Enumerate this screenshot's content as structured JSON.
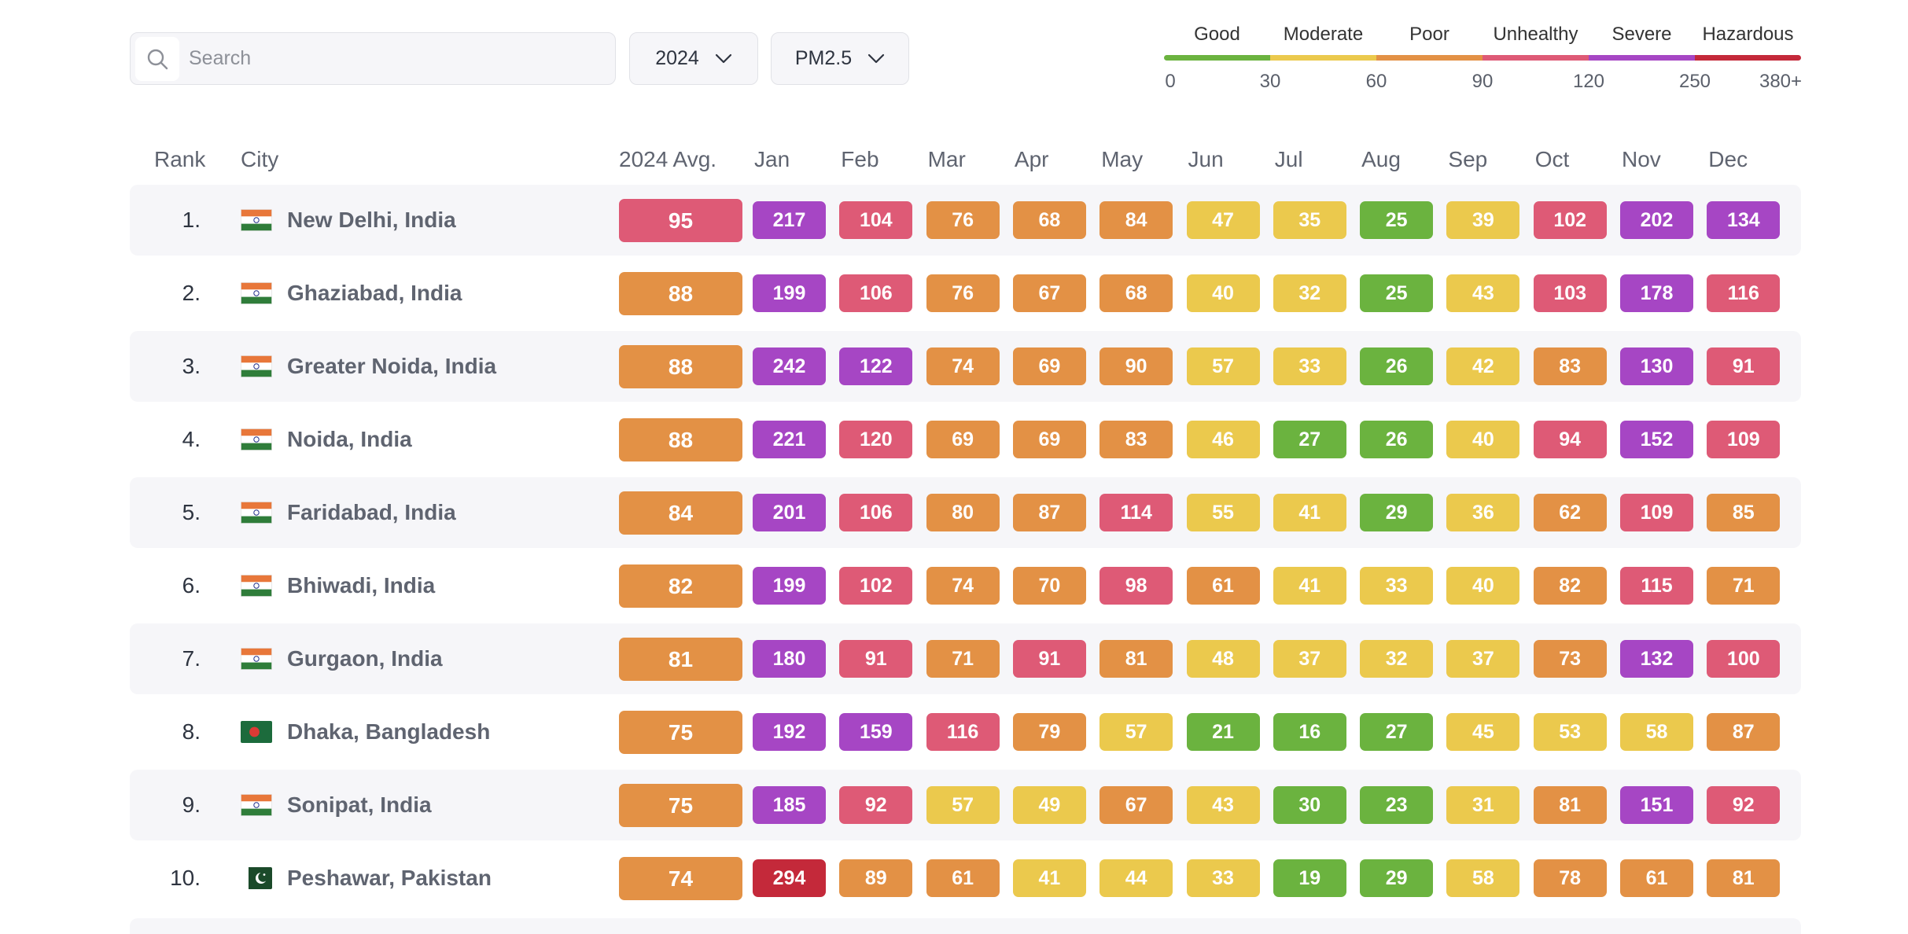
{
  "search": {
    "placeholder": "Search",
    "value": ""
  },
  "filters": {
    "year": "2024",
    "pollutant": "PM2.5"
  },
  "legend": {
    "categories": [
      {
        "label": "Good",
        "color": "#6bb33f"
      },
      {
        "label": "Moderate",
        "color": "#ebc94d"
      },
      {
        "label": "Poor",
        "color": "#e39145"
      },
      {
        "label": "Unhealthy",
        "color": "#de5a76"
      },
      {
        "label": "Severe",
        "color": "#a646c4"
      },
      {
        "label": "Hazardous",
        "color": "#c4293a"
      }
    ],
    "ticks": [
      "0",
      "30",
      "60",
      "90",
      "120",
      "250",
      "380+"
    ]
  },
  "table": {
    "headers": {
      "rank": "Rank",
      "city": "City",
      "avg": "2024 Avg.",
      "months": [
        "Jan",
        "Feb",
        "Mar",
        "Apr",
        "May",
        "Jun",
        "Jul",
        "Aug",
        "Sep",
        "Oct",
        "Nov",
        "Dec"
      ]
    },
    "rows": [
      {
        "rank": "1.",
        "city": "New Delhi, India",
        "flag": "india-flag-icon",
        "avg": "95",
        "months": [
          "217",
          "104",
          "76",
          "68",
          "84",
          "47",
          "35",
          "25",
          "39",
          "102",
          "202",
          "134"
        ]
      },
      {
        "rank": "2.",
        "city": "Ghaziabad, India",
        "flag": "india-flag-icon",
        "avg": "88",
        "months": [
          "199",
          "106",
          "76",
          "67",
          "68",
          "40",
          "32",
          "25",
          "43",
          "103",
          "178",
          "116"
        ]
      },
      {
        "rank": "3.",
        "city": "Greater Noida, India",
        "flag": "india-flag-icon",
        "avg": "88",
        "months": [
          "242",
          "122",
          "74",
          "69",
          "90",
          "57",
          "33",
          "26",
          "42",
          "83",
          "130",
          "91"
        ]
      },
      {
        "rank": "4.",
        "city": "Noida, India",
        "flag": "india-flag-icon",
        "avg": "88",
        "months": [
          "221",
          "120",
          "69",
          "69",
          "83",
          "46",
          "27",
          "26",
          "40",
          "94",
          "152",
          "109"
        ]
      },
      {
        "rank": "5.",
        "city": "Faridabad, India",
        "flag": "india-flag-icon",
        "avg": "84",
        "months": [
          "201",
          "106",
          "80",
          "87",
          "114",
          "55",
          "41",
          "29",
          "36",
          "62",
          "109",
          "85"
        ]
      },
      {
        "rank": "6.",
        "city": "Bhiwadi, India",
        "flag": "india-flag-icon",
        "avg": "82",
        "months": [
          "199",
          "102",
          "74",
          "70",
          "98",
          "61",
          "41",
          "33",
          "40",
          "82",
          "115",
          "71"
        ]
      },
      {
        "rank": "7.",
        "city": "Gurgaon, India",
        "flag": "india-flag-icon",
        "avg": "81",
        "months": [
          "180",
          "91",
          "71",
          "91",
          "81",
          "48",
          "37",
          "32",
          "37",
          "73",
          "132",
          "100"
        ]
      },
      {
        "rank": "8.",
        "city": "Dhaka, Bangladesh",
        "flag": "bangladesh-flag-icon",
        "avg": "75",
        "months": [
          "192",
          "159",
          "116",
          "79",
          "57",
          "21",
          "16",
          "27",
          "45",
          "53",
          "58",
          "87"
        ]
      },
      {
        "rank": "9.",
        "city": "Sonipat, India",
        "flag": "india-flag-icon",
        "avg": "75",
        "months": [
          "185",
          "92",
          "57",
          "49",
          "67",
          "43",
          "30",
          "23",
          "31",
          "81",
          "151",
          "92"
        ]
      },
      {
        "rank": "10.",
        "city": "Peshawar, Pakistan",
        "flag": "pakistan-flag-icon",
        "avg": "74",
        "months": [
          "294",
          "89",
          "61",
          "41",
          "44",
          "33",
          "19",
          "29",
          "58",
          "78",
          "61",
          "81"
        ]
      }
    ]
  }
}
